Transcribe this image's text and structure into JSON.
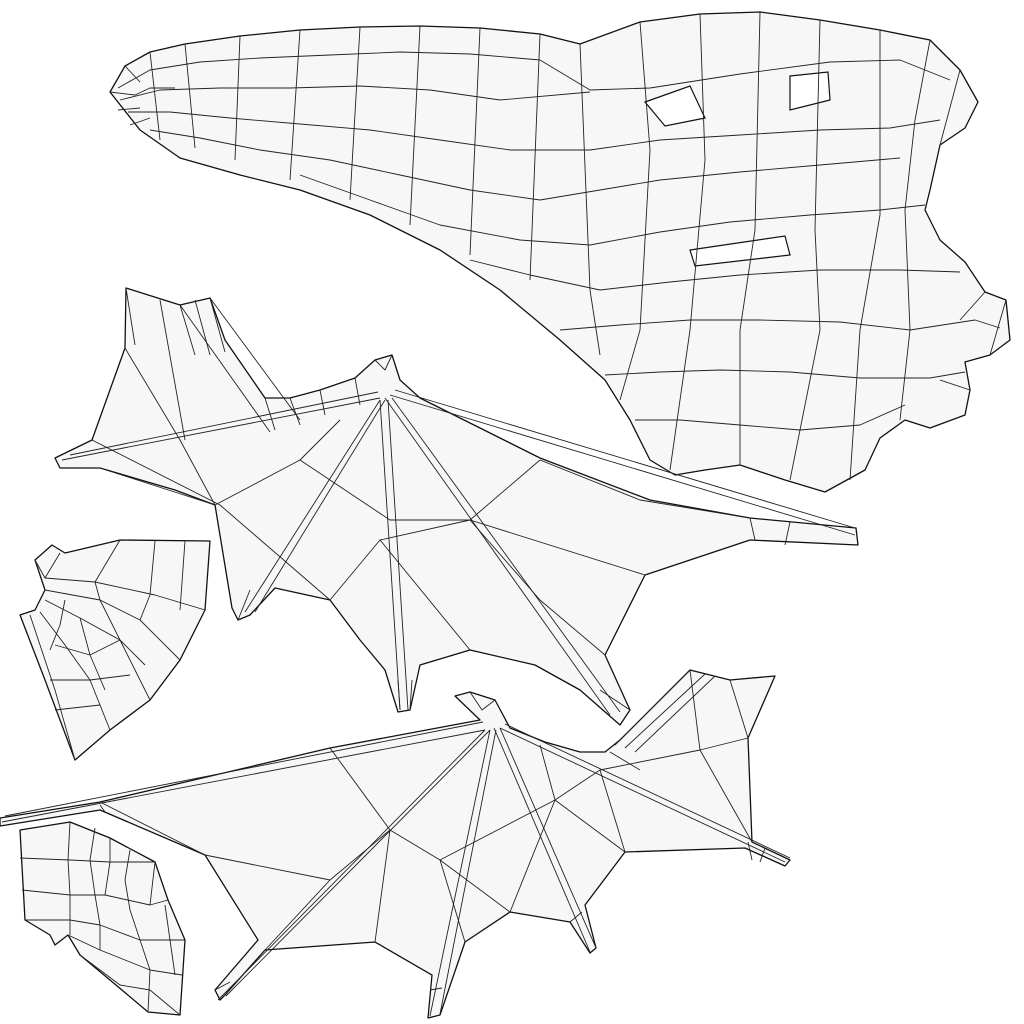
{
  "view": {
    "name": "uv-layout",
    "background": "#ffffff",
    "island_fill": "#f7f7f7",
    "wire_color": "#111111"
  },
  "islands": [
    {
      "id": "head",
      "kind": "head shell"
    },
    {
      "id": "wing-upper",
      "kind": "wing membrane"
    },
    {
      "id": "wing-lower",
      "kind": "wing membrane"
    },
    {
      "id": "fan-upper",
      "kind": "small patch"
    },
    {
      "id": "fan-lower",
      "kind": "small patch"
    }
  ]
}
